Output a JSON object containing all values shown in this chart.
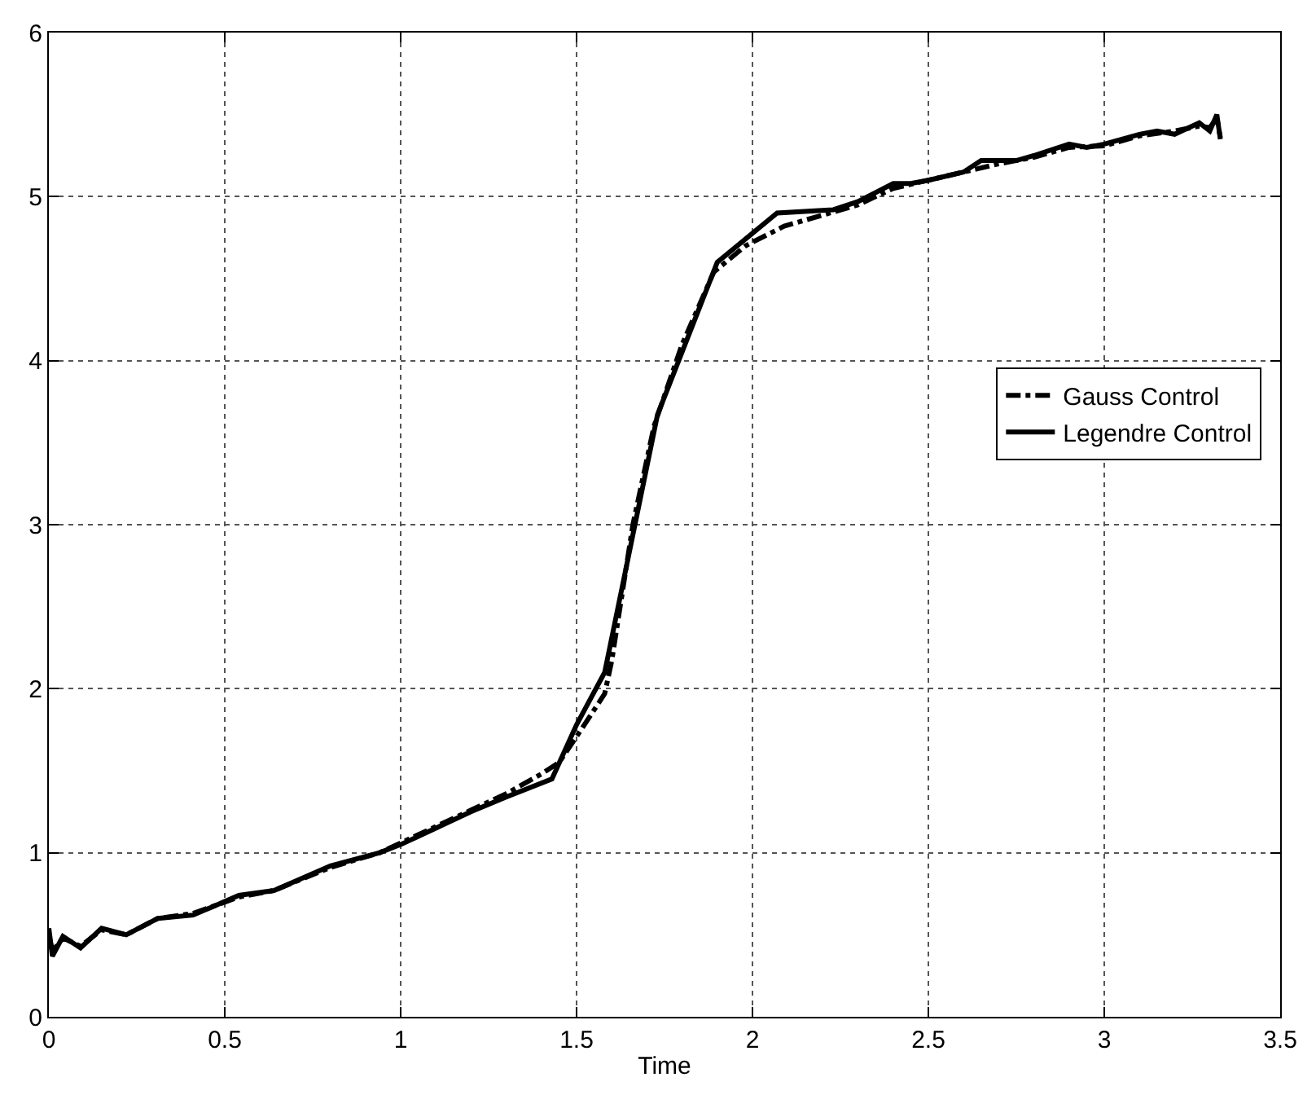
{
  "chart_data": {
    "type": "line",
    "xlabel": "Time",
    "xlim": [
      0,
      3.5
    ],
    "ylim": [
      0,
      6
    ],
    "xticks": [
      0,
      0.5,
      1,
      1.5,
      2,
      2.5,
      3,
      3.5
    ],
    "yticks": [
      0,
      1,
      2,
      3,
      4,
      5,
      6
    ],
    "grid": true,
    "legend": "right",
    "marker": "none",
    "series": [
      {
        "name": "Gauss Control",
        "color": "#000000",
        "line_style": "dashdot",
        "x": [
          0,
          0.01,
          0.04,
          0.09,
          0.15,
          0.22,
          0.31,
          0.41,
          0.54,
          0.64,
          0.8,
          0.94,
          1.0,
          1.1,
          1.2,
          1.3,
          1.4,
          1.45,
          1.51,
          1.58,
          1.6,
          1.66,
          1.72,
          1.8,
          1.89,
          1.98,
          2.09,
          2.22,
          2.3,
          2.4,
          2.5,
          2.6,
          2.7,
          2.8,
          2.9,
          3.0,
          3.1,
          3.2,
          3.27,
          3.3,
          3.32,
          3.33
        ],
        "values": [
          0.5,
          0.4,
          0.48,
          0.43,
          0.53,
          0.5,
          0.6,
          0.63,
          0.73,
          0.77,
          0.91,
          1.0,
          1.06,
          1.16,
          1.26,
          1.36,
          1.48,
          1.55,
          1.74,
          1.97,
          2.17,
          3.0,
          3.6,
          4.1,
          4.54,
          4.7,
          4.82,
          4.9,
          4.95,
          5.05,
          5.1,
          5.15,
          5.2,
          5.24,
          5.3,
          5.31,
          5.37,
          5.4,
          5.43,
          5.42,
          5.48,
          5.36
        ]
      },
      {
        "name": "Legendre Control",
        "color": "#000000",
        "line_style": "solid",
        "x": [
          0,
          0.01,
          0.04,
          0.09,
          0.15,
          0.22,
          0.31,
          0.41,
          0.54,
          0.64,
          0.8,
          0.94,
          1.0,
          1.1,
          1.2,
          1.3,
          1.43,
          1.5,
          1.58,
          1.73,
          1.9,
          2.07,
          2.23,
          2.3,
          2.4,
          2.45,
          2.5,
          2.6,
          2.65,
          2.75,
          2.8,
          2.9,
          2.95,
          3.0,
          3.1,
          3.15,
          3.2,
          3.27,
          3.3,
          3.32,
          3.33
        ],
        "values": [
          0.54,
          0.37,
          0.49,
          0.42,
          0.54,
          0.5,
          0.6,
          0.62,
          0.74,
          0.77,
          0.92,
          1.0,
          1.05,
          1.15,
          1.25,
          1.34,
          1.45,
          1.78,
          2.1,
          3.67,
          4.6,
          4.9,
          4.92,
          4.97,
          5.08,
          5.08,
          5.1,
          5.15,
          5.22,
          5.22,
          5.25,
          5.32,
          5.3,
          5.32,
          5.38,
          5.4,
          5.38,
          5.45,
          5.4,
          5.5,
          5.35
        ]
      }
    ]
  }
}
